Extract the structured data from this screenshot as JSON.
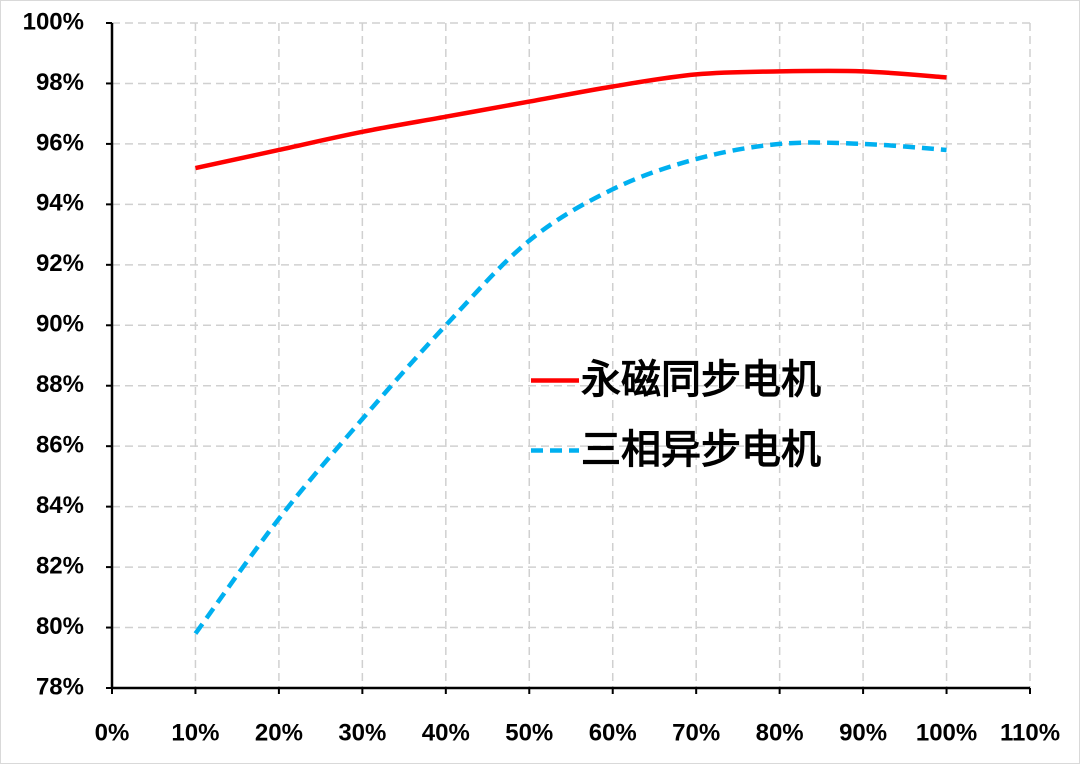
{
  "chart_data": {
    "type": "line",
    "x": [
      10,
      20,
      30,
      40,
      50,
      60,
      70,
      80,
      90,
      100
    ],
    "series": [
      {
        "name": "永磁同步电机",
        "color": "#ff0000",
        "dash": false,
        "values": [
          95.2,
          95.8,
          96.4,
          96.9,
          97.4,
          97.9,
          98.3,
          98.4,
          98.4,
          98.2
        ]
      },
      {
        "name": "三相异步电机",
        "color": "#00b0f0",
        "dash": true,
        "values": [
          79.8,
          83.6,
          86.9,
          90.0,
          92.8,
          94.5,
          95.5,
          96.0,
          96.0,
          95.8
        ]
      }
    ],
    "xlim": [
      0,
      110
    ],
    "xticks": [
      {
        "value": 0,
        "label": "0%"
      },
      {
        "value": 10,
        "label": "10%"
      },
      {
        "value": 20,
        "label": "20%"
      },
      {
        "value": 30,
        "label": "30%"
      },
      {
        "value": 40,
        "label": "40%"
      },
      {
        "value": 50,
        "label": "50%"
      },
      {
        "value": 60,
        "label": "60%"
      },
      {
        "value": 70,
        "label": "70%"
      },
      {
        "value": 80,
        "label": "80%"
      },
      {
        "value": 90,
        "label": "90%"
      },
      {
        "value": 100,
        "label": "100%"
      },
      {
        "value": 110,
        "label": "110%"
      }
    ],
    "ylim": [
      78,
      100
    ],
    "yticks": [
      {
        "value": 78,
        "label": "78%"
      },
      {
        "value": 80,
        "label": "80%"
      },
      {
        "value": 82,
        "label": "82%"
      },
      {
        "value": 84,
        "label": "84%"
      },
      {
        "value": 86,
        "label": "86%"
      },
      {
        "value": 88,
        "label": "88%"
      },
      {
        "value": 90,
        "label": "90%"
      },
      {
        "value": 92,
        "label": "92%"
      },
      {
        "value": 94,
        "label": "94%"
      },
      {
        "value": 96,
        "label": "96%"
      },
      {
        "value": 98,
        "label": "98%"
      },
      {
        "value": 100,
        "label": "100%"
      }
    ],
    "grid": true,
    "legend": "center"
  }
}
